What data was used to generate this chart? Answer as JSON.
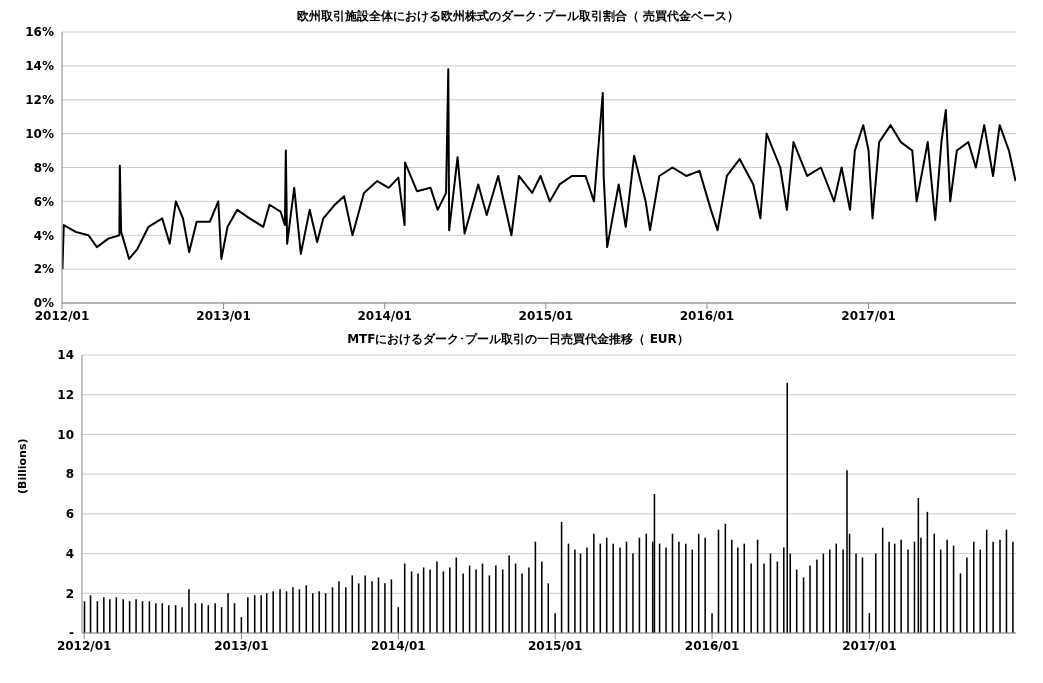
{
  "chart_data": [
    {
      "type": "line",
      "title": "欧州取引施設全体における欧州株式のダーク･プール取引割合（ 売買代金ベース）",
      "color": "#000000",
      "marker": "none",
      "grid": "y",
      "x": [
        "2012-01-02",
        "2012-01-05",
        "2012-02-01",
        "2012-03-01",
        "2012-03-20",
        "2012-04-15",
        "2012-05-10",
        "2012-05-11",
        "2012-05-14",
        "2012-06-01",
        "2012-06-20",
        "2012-07-15",
        "2012-08-15",
        "2012-09-01",
        "2012-09-15",
        "2012-10-01",
        "2012-10-15",
        "2012-11-01",
        "2012-12-01",
        "2012-12-20",
        "2012-12-27",
        "2013-01-10",
        "2013-02-01",
        "2013-03-01",
        "2013-04-01",
        "2013-04-15",
        "2013-05-10",
        "2013-05-20",
        "2013-05-22",
        "2013-05-25",
        "2013-06-10",
        "2013-06-25",
        "2013-07-15",
        "2013-08-01",
        "2013-08-15",
        "2013-09-10",
        "2013-10-01",
        "2013-10-20",
        "2013-11-15",
        "2013-12-15",
        "2014-01-10",
        "2014-02-01",
        "2014-02-15",
        "2014-02-16",
        "2014-03-15",
        "2014-04-15",
        "2014-05-01",
        "2014-05-20",
        "2014-05-25",
        "2014-05-27",
        "2014-06-15",
        "2014-07-01",
        "2014-08-01",
        "2014-08-20",
        "2014-09-15",
        "2014-10-15",
        "2014-11-01",
        "2014-12-01",
        "2014-12-20",
        "2015-01-10",
        "2015-02-01",
        "2015-03-01",
        "2015-04-01",
        "2015-04-20",
        "2015-05-10",
        "2015-05-12",
        "2015-05-20",
        "2015-06-15",
        "2015-07-01",
        "2015-07-20",
        "2015-08-15",
        "2015-08-25",
        "2015-09-15",
        "2015-10-15",
        "2015-11-15",
        "2015-12-15",
        "2016-01-10",
        "2016-01-25",
        "2016-02-15",
        "2016-03-15",
        "2016-04-15",
        "2016-05-01",
        "2016-05-15",
        "2016-06-15",
        "2016-06-30",
        "2016-07-15",
        "2016-08-15",
        "2016-09-15",
        "2016-10-15",
        "2016-11-01",
        "2016-11-20",
        "2016-12-01",
        "2016-12-20",
        "2017-01-01",
        "2017-01-10",
        "2017-01-25",
        "2017-02-20",
        "2017-03-15",
        "2017-04-10",
        "2017-04-20",
        "2017-05-15",
        "2017-06-01",
        "2017-06-15",
        "2017-06-25",
        "2017-07-05",
        "2017-07-20",
        "2017-08-15",
        "2017-09-01",
        "2017-09-20",
        "2017-10-10",
        "2017-10-25",
        "2017-11-15",
        "2017-11-30"
      ],
      "values": [
        2.0,
        4.6,
        4.2,
        4.0,
        3.3,
        3.8,
        4.0,
        8.1,
        4.2,
        2.6,
        3.2,
        4.5,
        5.0,
        3.5,
        6.0,
        5.0,
        3.0,
        4.8,
        4.8,
        6.0,
        2.6,
        4.5,
        5.5,
        5.0,
        4.5,
        5.8,
        5.4,
        4.6,
        9.0,
        3.5,
        6.8,
        2.9,
        5.5,
        3.6,
        5.0,
        5.8,
        6.3,
        4.0,
        6.5,
        7.2,
        6.8,
        7.4,
        4.6,
        8.3,
        6.6,
        6.8,
        5.5,
        6.5,
        13.8,
        4.3,
        8.6,
        4.1,
        7.0,
        5.2,
        7.5,
        4.0,
        7.5,
        6.5,
        7.5,
        6.0,
        7.0,
        7.5,
        7.5,
        6.0,
        12.4,
        7.5,
        3.3,
        7.0,
        4.5,
        8.7,
        6.0,
        4.3,
        7.5,
        8.0,
        7.5,
        7.8,
        5.5,
        4.3,
        7.5,
        8.5,
        7.0,
        5.0,
        10.0,
        8.0,
        5.5,
        9.5,
        7.5,
        8.0,
        6.0,
        8.0,
        5.5,
        9.0,
        10.5,
        9.0,
        5.0,
        9.5,
        10.5,
        9.5,
        9.0,
        6.0,
        9.5,
        4.9,
        9.5,
        11.4,
        6.0,
        9.0,
        9.5,
        8.0,
        10.5,
        7.5,
        10.5,
        9.0,
        7.2
      ],
      "xlim": [
        "2012-01-01",
        "2017-12-01"
      ],
      "xticks": [
        {
          "value": "2012-01-01",
          "label": "2012/01"
        },
        {
          "value": "2013-01-01",
          "label": "2013/01"
        },
        {
          "value": "2014-01-01",
          "label": "2014/01"
        },
        {
          "value": "2015-01-01",
          "label": "2015/01"
        },
        {
          "value": "2016-01-01",
          "label": "2016/01"
        },
        {
          "value": "2017-01-01",
          "label": "2017/01"
        }
      ],
      "ylim": [
        0,
        16
      ],
      "yticks": [
        {
          "value": 0,
          "label": "0%"
        },
        {
          "value": 2,
          "label": "2%"
        },
        {
          "value": 4,
          "label": "4%"
        },
        {
          "value": 6,
          "label": "6%"
        },
        {
          "value": 8,
          "label": "8%"
        },
        {
          "value": 10,
          "label": "10%"
        },
        {
          "value": 12,
          "label": "12%"
        },
        {
          "value": 14,
          "label": "14%"
        },
        {
          "value": 16,
          "label": "16%"
        }
      ]
    },
    {
      "type": "bar",
      "title": "MTFにおけるダーク･プール取引の一日売買代金推移（ EUR）",
      "ylabel": "(Billions)",
      "color": "#000000",
      "grid": "y",
      "x": [
        "2012-01-02",
        "2012-01-16",
        "2012-02-01",
        "2012-02-16",
        "2012-03-01",
        "2012-03-16",
        "2012-04-01",
        "2012-04-16",
        "2012-05-01",
        "2012-05-16",
        "2012-06-01",
        "2012-06-16",
        "2012-07-01",
        "2012-07-16",
        "2012-08-01",
        "2012-08-16",
        "2012-09-01",
        "2012-09-16",
        "2012-10-01",
        "2012-10-16",
        "2012-11-01",
        "2012-11-16",
        "2012-12-01",
        "2012-12-16",
        "2013-01-01",
        "2013-01-16",
        "2013-02-01",
        "2013-02-16",
        "2013-03-01",
        "2013-03-16",
        "2013-04-01",
        "2013-04-16",
        "2013-05-01",
        "2013-05-16",
        "2013-06-01",
        "2013-06-16",
        "2013-07-01",
        "2013-07-16",
        "2013-08-01",
        "2013-08-16",
        "2013-09-01",
        "2013-09-16",
        "2013-10-01",
        "2013-10-16",
        "2013-11-01",
        "2013-11-16",
        "2013-12-01",
        "2013-12-16",
        "2014-01-01",
        "2014-01-16",
        "2014-02-01",
        "2014-02-16",
        "2014-03-01",
        "2014-03-16",
        "2014-04-01",
        "2014-04-16",
        "2014-05-01",
        "2014-05-16",
        "2014-06-01",
        "2014-06-16",
        "2014-07-01",
        "2014-07-16",
        "2014-08-01",
        "2014-08-16",
        "2014-09-01",
        "2014-09-16",
        "2014-10-01",
        "2014-10-16",
        "2014-11-01",
        "2014-11-16",
        "2014-12-01",
        "2014-12-16",
        "2015-01-01",
        "2015-01-16",
        "2015-02-01",
        "2015-02-16",
        "2015-03-01",
        "2015-03-16",
        "2015-04-01",
        "2015-04-16",
        "2015-05-01",
        "2015-05-16",
        "2015-06-01",
        "2015-06-16",
        "2015-07-01",
        "2015-07-16",
        "2015-08-01",
        "2015-08-16",
        "2015-08-20",
        "2015-09-01",
        "2015-09-16",
        "2015-10-01",
        "2015-10-16",
        "2015-11-01",
        "2015-11-16",
        "2015-12-01",
        "2015-12-16",
        "2016-01-01",
        "2016-01-16",
        "2016-02-01",
        "2016-02-16",
        "2016-03-01",
        "2016-03-16",
        "2016-04-01",
        "2016-04-16",
        "2016-05-01",
        "2016-05-16",
        "2016-06-01",
        "2016-06-16",
        "2016-06-24",
        "2016-07-01",
        "2016-07-16",
        "2016-08-01",
        "2016-08-16",
        "2016-09-01",
        "2016-09-16",
        "2016-10-01",
        "2016-10-16",
        "2016-11-01",
        "2016-11-10",
        "2016-11-16",
        "2016-12-01",
        "2016-12-16",
        "2017-01-01",
        "2017-01-16",
        "2017-02-01",
        "2017-02-16",
        "2017-03-01",
        "2017-03-16",
        "2017-04-01",
        "2017-04-16",
        "2017-04-25",
        "2017-05-01",
        "2017-05-16",
        "2017-06-01",
        "2017-06-16",
        "2017-07-01",
        "2017-07-16",
        "2017-08-01",
        "2017-08-16",
        "2017-09-01",
        "2017-09-16",
        "2017-10-01",
        "2017-10-16",
        "2017-11-01",
        "2017-11-16",
        "2017-12-01"
      ],
      "values": [
        1.6,
        1.9,
        1.6,
        1.8,
        1.7,
        1.8,
        1.7,
        1.6,
        1.7,
        1.6,
        1.6,
        1.5,
        1.5,
        1.4,
        1.4,
        1.3,
        2.2,
        1.5,
        1.5,
        1.4,
        1.5,
        1.3,
        2.0,
        1.5,
        0.8,
        1.8,
        1.9,
        1.9,
        2.0,
        2.1,
        2.2,
        2.1,
        2.3,
        2.2,
        2.4,
        2.0,
        2.1,
        2.0,
        2.3,
        2.6,
        2.3,
        2.9,
        2.5,
        2.9,
        2.6,
        2.8,
        2.5,
        2.7,
        1.3,
        3.5,
        3.1,
        3.0,
        3.3,
        3.2,
        3.6,
        3.1,
        3.3,
        3.8,
        3.0,
        3.4,
        3.2,
        3.5,
        2.9,
        3.4,
        3.2,
        3.9,
        3.5,
        3.0,
        3.3,
        4.6,
        3.6,
        2.5,
        1.0,
        5.6,
        4.5,
        4.2,
        4.0,
        4.3,
        5.0,
        4.5,
        4.8,
        4.5,
        4.3,
        4.6,
        4.0,
        4.8,
        5.0,
        4.6,
        7.0,
        4.5,
        4.3,
        5.0,
        4.6,
        4.5,
        4.2,
        5.0,
        4.8,
        1.0,
        5.2,
        5.5,
        4.7,
        4.3,
        4.5,
        3.5,
        4.7,
        3.5,
        4.0,
        3.6,
        4.3,
        12.6,
        4.0,
        3.2,
        2.8,
        3.4,
        3.7,
        4.0,
        4.2,
        4.5,
        4.2,
        8.2,
        5.0,
        4.0,
        3.8,
        1.0,
        4.0,
        5.3,
        4.6,
        4.5,
        4.7,
        4.2,
        4.6,
        6.8,
        4.8,
        6.1,
        5.0,
        4.2,
        4.7,
        4.4,
        3.0,
        3.8,
        4.6,
        4.2,
        5.2,
        4.6,
        4.7,
        5.2,
        4.6
      ],
      "xlim": [
        "2011-12-27",
        "2017-12-08"
      ],
      "xticks": [
        {
          "value": "2012-01-01",
          "label": "2012/01"
        },
        {
          "value": "2013-01-01",
          "label": "2013/01"
        },
        {
          "value": "2014-01-01",
          "label": "2014/01"
        },
        {
          "value": "2015-01-01",
          "label": "2015/01"
        },
        {
          "value": "2016-01-01",
          "label": "2016/01"
        },
        {
          "value": "2017-01-01",
          "label": "2017/01"
        }
      ],
      "ylim": [
        0,
        14
      ],
      "yticks": [
        {
          "value": 0,
          "label": "-"
        },
        2,
        4,
        6,
        8,
        10,
        12,
        14
      ]
    }
  ]
}
